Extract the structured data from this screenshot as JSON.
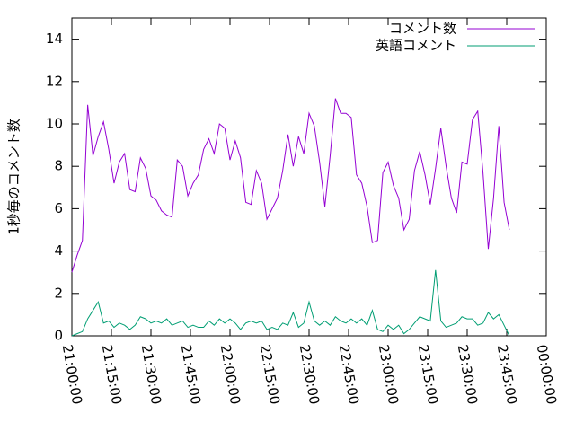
{
  "chart_data": {
    "type": "line",
    "ylabel": "1秒毎のコメント数",
    "x": [
      "21:00:00",
      "21:02:00",
      "21:04:00",
      "21:06:00",
      "21:08:00",
      "21:10:00",
      "21:12:00",
      "21:14:00",
      "21:16:00",
      "21:18:00",
      "21:20:00",
      "21:22:00",
      "21:24:00",
      "21:26:00",
      "21:28:00",
      "21:30:00",
      "21:32:00",
      "21:34:00",
      "21:36:00",
      "21:38:00",
      "21:40:00",
      "21:42:00",
      "21:44:00",
      "21:46:00",
      "21:48:00",
      "21:50:00",
      "21:52:00",
      "21:54:00",
      "21:56:00",
      "21:58:00",
      "22:00:00",
      "22:02:00",
      "22:04:00",
      "22:06:00",
      "22:08:00",
      "22:10:00",
      "22:12:00",
      "22:14:00",
      "22:16:00",
      "22:18:00",
      "22:20:00",
      "22:22:00",
      "22:24:00",
      "22:26:00",
      "22:28:00",
      "22:30:00",
      "22:32:00",
      "22:34:00",
      "22:36:00",
      "22:38:00",
      "22:40:00",
      "22:42:00",
      "22:44:00",
      "22:46:00",
      "22:48:00",
      "22:50:00",
      "22:52:00",
      "22:54:00",
      "22:56:00",
      "22:58:00",
      "23:00:00",
      "23:02:00",
      "23:04:00",
      "23:06:00",
      "23:08:00",
      "23:10:00",
      "23:12:00",
      "23:14:00",
      "23:16:00",
      "23:18:00",
      "23:20:00",
      "23:22:00",
      "23:24:00",
      "23:26:00",
      "23:28:00",
      "23:30:00",
      "23:32:00",
      "23:34:00",
      "23:36:00",
      "23:38:00",
      "23:40:00",
      "23:42:00",
      "23:44:00",
      "23:46:00"
    ],
    "series": [
      {
        "name": "コメント数",
        "color": "#9400d3",
        "values": [
          3.0,
          3.8,
          4.5,
          10.9,
          8.5,
          9.4,
          10.1,
          8.8,
          7.2,
          8.2,
          8.6,
          6.9,
          6.8,
          8.4,
          7.9,
          6.6,
          6.4,
          5.9,
          5.7,
          5.6,
          8.3,
          8.0,
          6.6,
          7.2,
          7.6,
          8.8,
          9.3,
          8.6,
          10.0,
          9.8,
          8.3,
          9.2,
          8.4,
          6.3,
          6.2,
          7.8,
          7.2,
          5.5,
          6.0,
          6.5,
          7.8,
          9.5,
          8.0,
          9.4,
          8.6,
          10.5,
          9.9,
          8.2,
          6.1,
          8.5,
          11.2,
          10.5,
          10.5,
          10.3,
          7.6,
          7.2,
          6.1,
          4.4,
          4.5,
          7.7,
          8.2,
          7.1,
          6.5,
          5.0,
          5.5,
          7.8,
          8.7,
          7.6,
          6.2,
          7.9,
          9.8,
          8.0,
          6.5,
          5.8,
          8.2,
          8.1,
          10.2,
          10.6,
          7.7,
          4.1,
          6.5,
          9.9,
          6.3,
          5.0
        ]
      },
      {
        "name": "英語コメント",
        "color": "#009e73",
        "values": [
          0.0,
          0.1,
          0.2,
          0.8,
          1.2,
          1.6,
          0.6,
          0.7,
          0.4,
          0.6,
          0.5,
          0.3,
          0.5,
          0.9,
          0.8,
          0.6,
          0.7,
          0.6,
          0.8,
          0.5,
          0.6,
          0.7,
          0.4,
          0.5,
          0.4,
          0.4,
          0.7,
          0.5,
          0.8,
          0.6,
          0.8,
          0.6,
          0.3,
          0.6,
          0.7,
          0.6,
          0.7,
          0.3,
          0.4,
          0.3,
          0.6,
          0.5,
          1.1,
          0.4,
          0.6,
          1.6,
          0.7,
          0.5,
          0.7,
          0.5,
          0.9,
          0.7,
          0.6,
          0.8,
          0.6,
          0.8,
          0.5,
          1.2,
          0.3,
          0.2,
          0.5,
          0.3,
          0.5,
          0.1,
          0.3,
          0.6,
          0.9,
          0.8,
          0.7,
          3.1,
          0.7,
          0.4,
          0.5,
          0.6,
          0.9,
          0.8,
          0.8,
          0.5,
          0.6,
          1.1,
          0.8,
          1.0,
          0.5,
          0.0
        ]
      }
    ],
    "xlim": [
      "21:00:00",
      "00:00:00"
    ],
    "xticks": [
      "21:00:00",
      "21:15:00",
      "21:30:00",
      "21:45:00",
      "22:00:00",
      "22:15:00",
      "22:30:00",
      "22:45:00",
      "23:00:00",
      "23:15:00",
      "23:30:00",
      "23:45:00",
      "00:00:00"
    ],
    "ylim": [
      0,
      15
    ],
    "yticks": [
      0,
      2,
      4,
      6,
      8,
      10,
      12,
      14
    ],
    "legend": "upper right"
  }
}
